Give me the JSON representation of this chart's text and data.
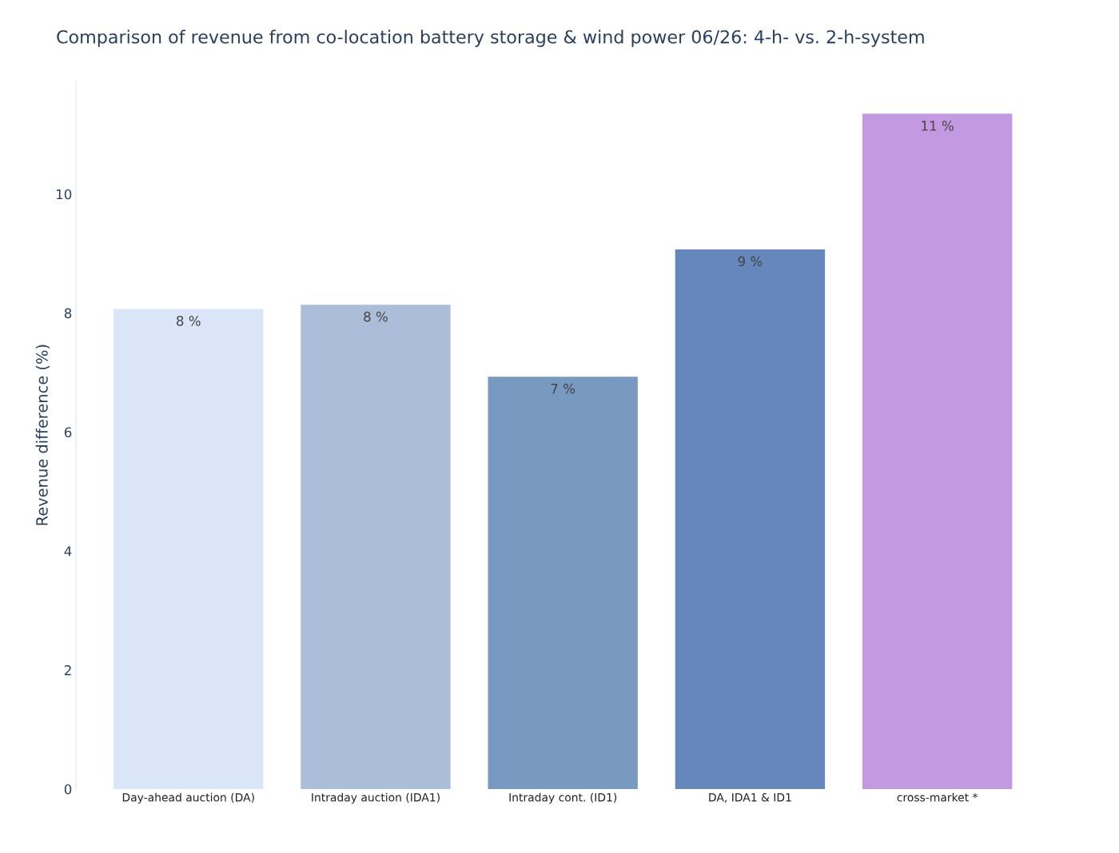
{
  "chart_data": {
    "type": "bar",
    "title": "Comparison of revenue from co-location battery storage & wind power 06/26: 4-h- vs. 2-h-system",
    "ylabel": "Revenue difference (%)",
    "categories": [
      "Day-ahead auction (DA)",
      "Intraday auction (IDA1)",
      "Intraday cont. (ID1)",
      "DA, IDA1 & ID1",
      "cross-market *"
    ],
    "values": [
      8.07,
      8.14,
      6.93,
      9.07,
      11.35
    ],
    "colors": [
      "#dae5f7",
      "#abbdd9",
      "#789ac1",
      "#6587bc",
      "#c39ae2"
    ],
    "value_labels": [
      "8 %",
      "8 %",
      "7 %",
      "9 %",
      "11 %"
    ],
    "ylim": [
      0,
      11.9
    ],
    "yticks": [
      0,
      2,
      4,
      6,
      8,
      10
    ],
    "grid": false
  }
}
